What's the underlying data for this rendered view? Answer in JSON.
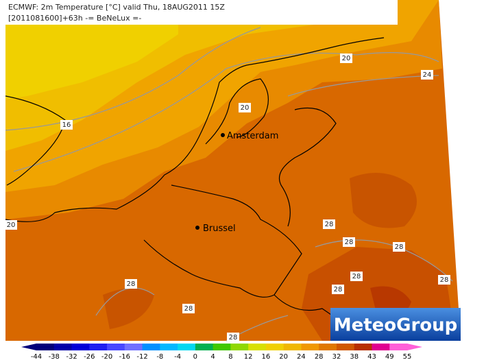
{
  "header": {
    "line1": "ECMWF: 2m Temperature [°C] valid Thu, 18AUG2011 15Z",
    "line2": "[2011081600]+63h -= BeNeLux =-"
  },
  "cities": [
    {
      "name": "Amsterdam"
    },
    {
      "name": "Brussel"
    }
  ],
  "contour_labels": [
    20,
    24,
    20,
    16,
    20,
    28,
    28,
    28,
    28,
    28,
    28,
    28,
    28,
    28
  ],
  "legend": {
    "ticks": [
      -44,
      -38,
      -32,
      -26,
      -20,
      -16,
      -12,
      -8,
      -4,
      0,
      4,
      8,
      12,
      16,
      20,
      24,
      28,
      32,
      38,
      43,
      49,
      55
    ],
    "colors": [
      "#00007a",
      "#0000a8",
      "#0000d8",
      "#2020f0",
      "#4848ff",
      "#7070ff",
      "#0090ff",
      "#00b8ff",
      "#00d8f0",
      "#00b050",
      "#40c800",
      "#90d800",
      "#d8e000",
      "#f0d000",
      "#f0b800",
      "#f09800",
      "#e07800",
      "#d05800",
      "#b83000",
      "#e00090",
      "#ff60d8"
    ]
  },
  "logo": "MeteoGroup"
}
